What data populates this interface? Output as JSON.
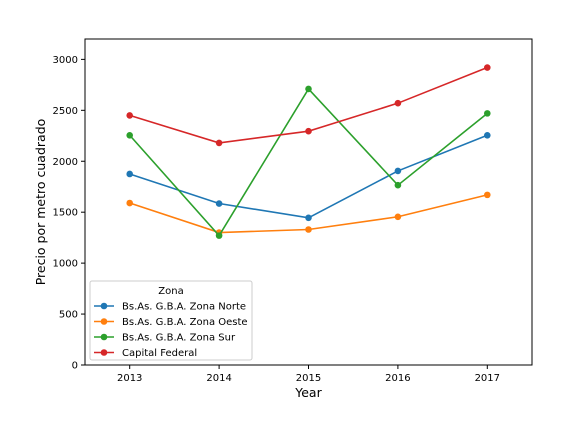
{
  "chart_data": {
    "type": "line",
    "title": "",
    "xlabel": "Year",
    "ylabel": "Precio por metro cuadrado",
    "x": [
      2013,
      2014,
      2015,
      2016,
      2017
    ],
    "xlim": [
      2012.5,
      2017.5
    ],
    "ylim": [
      0,
      3200
    ],
    "yticks": [
      0,
      500,
      1000,
      1500,
      2000,
      2500,
      3000
    ],
    "xticks": [
      2013,
      2014,
      2015,
      2016,
      2017
    ],
    "grid": false,
    "legend": {
      "title": "Zona",
      "placement": "lower-left"
    },
    "series": [
      {
        "name": "Bs.As. G.B.A. Zona Norte",
        "color": "#1f77b4",
        "values": [
          1875,
          1585,
          1445,
          1905,
          2255
        ]
      },
      {
        "name": "Bs.As. G.B.A. Zona Oeste",
        "color": "#ff7f0e",
        "values": [
          1590,
          1300,
          1330,
          1455,
          1670
        ]
      },
      {
        "name": "Bs.As. G.B.A. Zona Sur",
        "color": "#2ca02c",
        "values": [
          2255,
          1270,
          2710,
          1765,
          2470
        ]
      },
      {
        "name": "Capital Federal",
        "color": "#d62728",
        "values": [
          2450,
          2180,
          2295,
          2570,
          2920
        ]
      }
    ]
  }
}
